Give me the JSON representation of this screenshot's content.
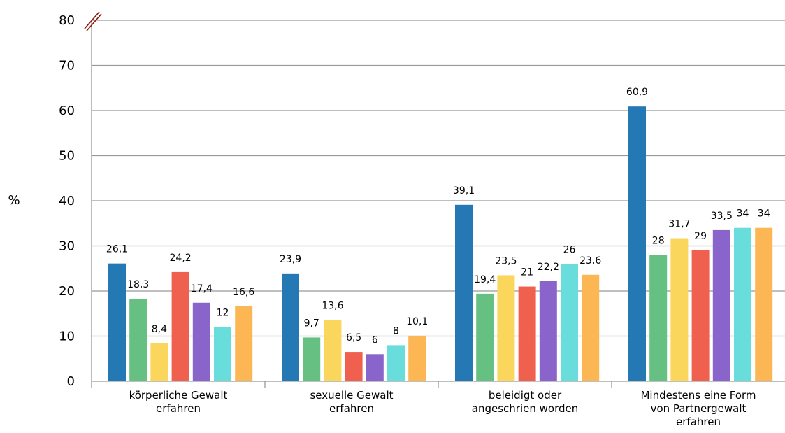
{
  "chart_data": {
    "type": "bar",
    "title": "",
    "xlabel": "",
    "ylabel": "%",
    "ylim": [
      0,
      80
    ],
    "yticks": [
      0,
      10,
      20,
      30,
      40,
      50,
      60,
      70,
      80
    ],
    "grid": true,
    "legend": "none",
    "axis_break": true,
    "categories": [
      [
        "körperliche Gewalt",
        "erfahren"
      ],
      [
        "sexuelle Gewalt",
        "erfahren"
      ],
      [
        "beleidigt oder",
        "angeschrien worden"
      ],
      [
        "Mindestens eine Form",
        "von Partnergewalt",
        "erfahren"
      ]
    ],
    "series": [
      {
        "color": "#2478b3",
        "values": [
          26.1,
          23.9,
          39.1,
          60.9
        ],
        "labels": [
          "26,1",
          "23,9",
          "39,1",
          "60,9"
        ]
      },
      {
        "color": "#66c082",
        "values": [
          18.3,
          9.7,
          19.4,
          28
        ],
        "labels": [
          "18,3",
          "9,7",
          "19,4",
          "28"
        ]
      },
      {
        "color": "#fad65c",
        "values": [
          8.4,
          13.6,
          23.5,
          31.7
        ],
        "labels": [
          "8,4",
          "13,6",
          "23,5",
          "31,7"
        ]
      },
      {
        "color": "#f0604f",
        "values": [
          24.2,
          6.5,
          21,
          29
        ],
        "labels": [
          "24,2",
          "6,5",
          "21",
          "29"
        ]
      },
      {
        "color": "#8964cb",
        "values": [
          17.4,
          6,
          22.2,
          33.5
        ],
        "labels": [
          "17,4",
          "6",
          "22,2",
          "33,5"
        ]
      },
      {
        "color": "#69dcdc",
        "values": [
          12,
          8,
          26,
          34
        ],
        "labels": [
          "12",
          "8",
          "26",
          "34"
        ]
      },
      {
        "color": "#fdb654",
        "values": [
          16.6,
          10.1,
          23.6,
          34
        ],
        "labels": [
          "16,6",
          "10,1",
          "23,6",
          "34"
        ]
      }
    ],
    "colors": {
      "grid": "#999999",
      "axis": "#999999",
      "break_mark": "#8b1a10"
    }
  }
}
